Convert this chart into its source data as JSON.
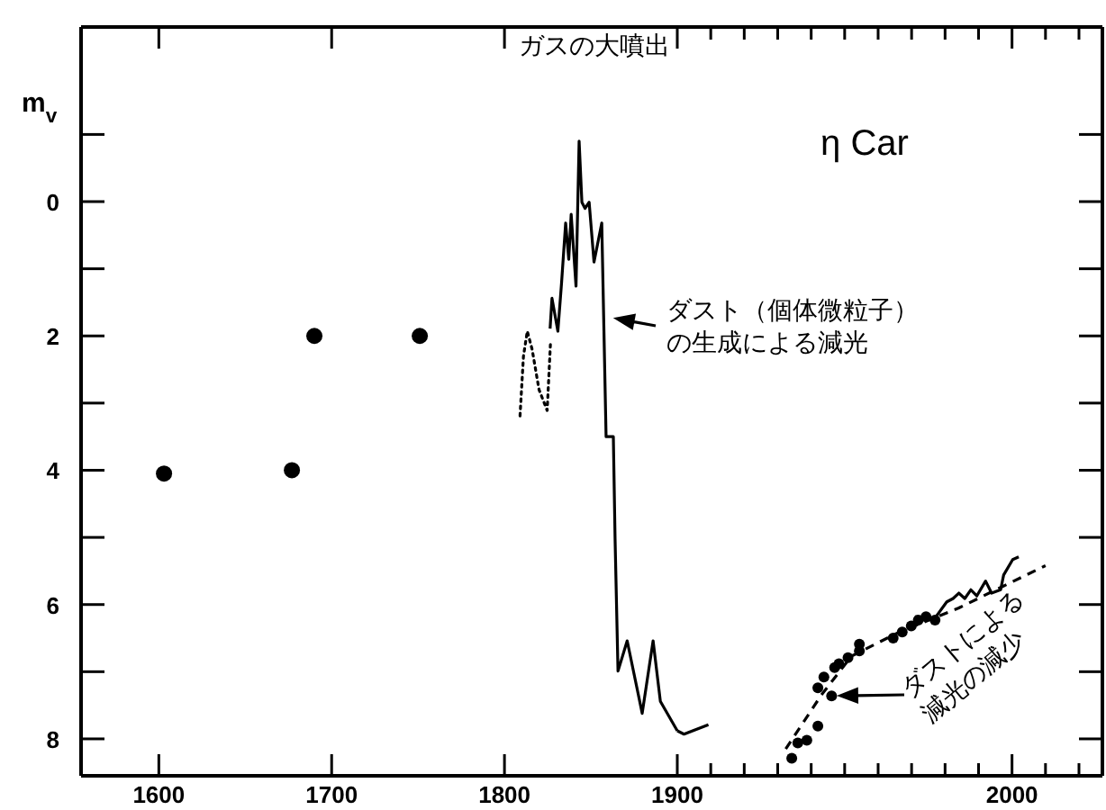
{
  "chart_data": [
    {
      "type": "line",
      "ylabel": "m$_{v}$",
      "xlim": [
        1555,
        1900
      ],
      "xticks": [
        1600,
        1700,
        1800
      ],
      "ylim": [
        8.55,
        -2.6
      ],
      "yticks": [
        {
          "value": -1,
          "label": null
        },
        0,
        {
          "value": 1,
          "label": null
        },
        2,
        {
          "value": 3,
          "label": null
        },
        4,
        {
          "value": 5,
          "label": null
        },
        6,
        {
          "value": 7,
          "label": null
        },
        8
      ],
      "series": [
        {
          "type": "scatter",
          "marker": "circle",
          "color": "#000000",
          "x": [
            1603,
            1677,
            1690,
            1751
          ],
          "values": [
            4.05,
            4.0,
            2.0,
            2.0
          ]
        },
        {
          "type": "line",
          "line_style": "dotted",
          "color": "#000000",
          "x": [
            1809,
            1811,
            1813.2,
            1816,
            1820,
            1824.7,
            1826.7
          ],
          "values": [
            3.19,
            2.3,
            1.93,
            2.2,
            2.8,
            3.11,
            2.07
          ]
        },
        {
          "type": "line",
          "line_style": "solid",
          "color": "#000000",
          "x": [
            1826.4,
            1827.5,
            1830.9,
            1833,
            1835.4,
            1837.2,
            1838.6,
            1841.4,
            1843.2,
            1844.8,
            1846.6,
            1849,
            1851.8,
            1856.3,
            1858.8,
            1863,
            1864,
            1865.7,
            1871,
            1879.7,
            1886,
            1890.2,
            1900
          ],
          "values": [
            1.89,
            1.44,
            1.93,
            1.22,
            0.32,
            0.86,
            0.19,
            1.26,
            -0.9,
            0.01,
            0.1,
            0.01,
            0.9,
            0.32,
            3.5,
            3.5,
            5.02,
            6.99,
            6.54,
            7.62,
            6.54,
            7.44,
            7.88
          ]
        }
      ],
      "annotations": [
        "ガスの大噴出",
        {
          "text": "ダスト（個体微粒子）の生成による減光",
          "x": 1860,
          "y": 1.72
        }
      ]
    },
    {
      "type": "line",
      "title": "η Car",
      "tick_labels": "x",
      "xlim": [
        1900,
        2027
      ],
      "xticks": [
        1900,
        {
          "value": 1910,
          "label": null
        },
        {
          "value": 1920,
          "label": null
        },
        {
          "value": 1930,
          "label": null
        },
        {
          "value": 1940,
          "label": null
        },
        {
          "value": 1950,
          "label": null
        },
        {
          "value": 1960,
          "label": null
        },
        {
          "value": 1970,
          "label": null
        },
        {
          "value": 1980,
          "label": null
        },
        {
          "value": 1990,
          "label": null
        },
        2000,
        {
          "value": 2010,
          "label": null
        },
        {
          "value": 2020,
          "label": null
        }
      ],
      "ylim": [
        8.55,
        -2.6
      ],
      "yticks": [
        {
          "value": -1,
          "label": null
        },
        0,
        {
          "value": 1,
          "label": null
        },
        2,
        {
          "value": 3,
          "label": null
        },
        4,
        {
          "value": 5,
          "label": null
        },
        6,
        {
          "value": 7,
          "label": null
        },
        8
      ],
      "series": [
        {
          "type": "line",
          "line_style": "solid",
          "color": "#000000",
          "x": [
            1900,
            1902,
            1909.3
          ],
          "values": [
            7.88,
            7.93,
            7.79
          ]
        },
        {
          "type": "scatter",
          "marker": "circle",
          "color": "#000000",
          "x": [
            1934.2,
            1936,
            1938.7,
            1942,
            1942,
            1943.8,
            1946.1,
            1947,
            1948.3,
            1951,
            1954.4,
            1954.4,
            1964.5,
            1967.2,
            1969.9,
            1972,
            1974.3,
            1977
          ],
          "values": [
            8.29,
            8.06,
            8.02,
            7.81,
            7.24,
            7.08,
            7.36,
            6.94,
            6.88,
            6.79,
            6.59,
            6.69,
            6.5,
            6.41,
            6.32,
            6.23,
            6.18,
            6.23
          ]
        },
        {
          "type": "line",
          "line_style": "dashed",
          "color": "#000000",
          "x": [
            1932.4,
            1943,
            1952,
            1966.3,
            1984.1,
            2010
          ],
          "values": [
            8.15,
            7.35,
            6.77,
            6.41,
            6.05,
            5.42
          ]
        },
        {
          "type": "line",
          "line_style": "solid",
          "color": "#000000",
          "x": [
            1977,
            1980.5,
            1982.4,
            1984.1,
            1985.9,
            1987.7,
            1989.5,
            1992.1,
            1993.9,
            1996.6,
            1997.5,
            2000.2,
            2002
          ],
          "values": [
            6.2,
            5.96,
            5.91,
            5.83,
            5.91,
            5.78,
            5.87,
            5.65,
            5.83,
            5.78,
            5.56,
            5.33,
            5.29
          ]
        }
      ],
      "annotations": [
        {
          "text": "ダストによる減光の減少",
          "x": 1946.1,
          "y": 7.36
        }
      ]
    }
  ]
}
